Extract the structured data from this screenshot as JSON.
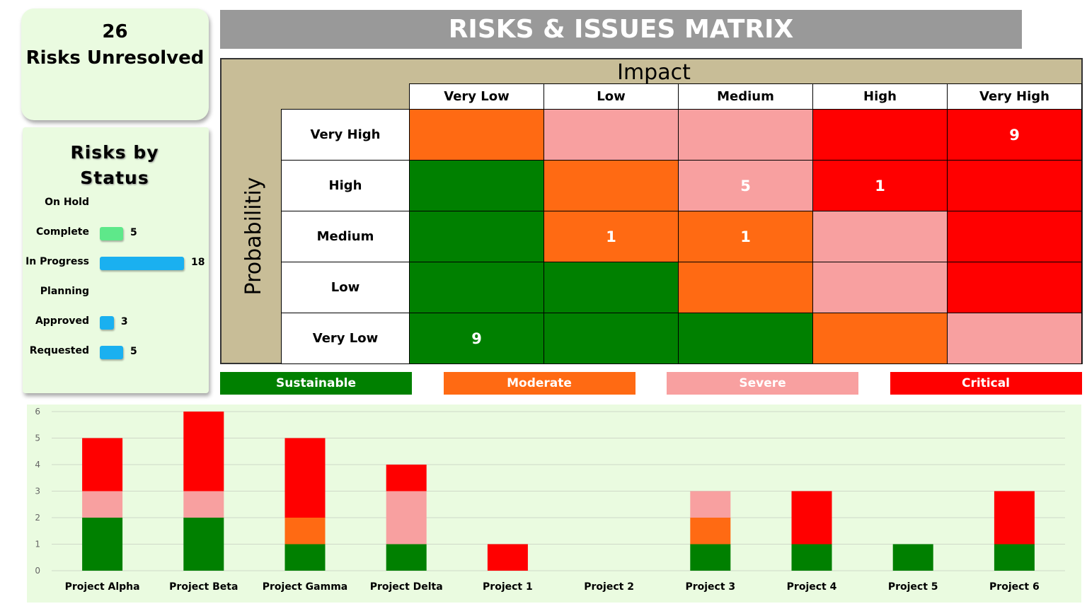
{
  "kpi": {
    "value": 26,
    "label": "Risks Unresolved"
  },
  "matrix": {
    "title": "RISKS & ISSUES MATRIX",
    "x_label": "Impact",
    "y_label": "Probabilitiy",
    "columns": [
      "Very Low",
      "Low",
      "Medium",
      "High",
      "Very High"
    ],
    "rows": [
      "Very High",
      "High",
      "Medium",
      "Low",
      "Very Low"
    ],
    "cell_colors": [
      [
        "#ff6a13",
        "#f8a0a0",
        "#f8a0a0",
        "#ff0000",
        "#ff0000"
      ],
      [
        "#008000",
        "#ff6a13",
        "#f8a0a0",
        "#ff0000",
        "#ff0000"
      ],
      [
        "#008000",
        "#ff6a13",
        "#ff6a13",
        "#f8a0a0",
        "#ff0000"
      ],
      [
        "#008000",
        "#008000",
        "#ff6a13",
        "#f8a0a0",
        "#ff0000"
      ],
      [
        "#008000",
        "#008000",
        "#008000",
        "#ff6a13",
        "#f8a0a0"
      ]
    ],
    "cell_values": [
      [
        null,
        null,
        null,
        null,
        9
      ],
      [
        null,
        null,
        5,
        1,
        null
      ],
      [
        null,
        1,
        1,
        null,
        null
      ],
      [
        null,
        null,
        null,
        null,
        null
      ],
      [
        9,
        null,
        null,
        null,
        null
      ]
    ],
    "legend": [
      {
        "name": "Sustainable",
        "color": "#008000"
      },
      {
        "name": "Moderate",
        "color": "#ff6a13"
      },
      {
        "name": "Severe",
        "color": "#f8a0a0"
      },
      {
        "name": "Critical",
        "color": "#ff0000"
      }
    ]
  },
  "chart_data": [
    {
      "type": "hbar",
      "title": "Risks by Status",
      "categories": [
        "On Hold",
        "Complete",
        "In Progress",
        "Planning",
        "Approved",
        "Requested"
      ],
      "values": [
        null,
        5,
        18,
        null,
        3,
        5
      ],
      "colors": [
        "#1ab0f0",
        "#5ee88a",
        "#1ab0f0",
        "#1ab0f0",
        "#1ab0f0",
        "#1ab0f0"
      ]
    },
    {
      "type": "stacked_bar",
      "categories": [
        "Project Alpha",
        "Project Beta",
        "Project Gamma",
        "Project Delta",
        "Project 1",
        "Project 2",
        "Project 3",
        "Project 4",
        "Project 5",
        "Project 6"
      ],
      "series": [
        {
          "color": "#008000",
          "values": [
            2,
            2,
            1,
            1,
            0,
            0,
            1,
            1,
            1,
            1
          ]
        },
        {
          "color": "#ff6a13",
          "values": [
            0,
            0,
            1,
            0,
            0,
            0,
            1,
            0,
            0,
            0
          ]
        },
        {
          "color": "#f8a0a0",
          "values": [
            1,
            1,
            0,
            2,
            0,
            0,
            1,
            0,
            0,
            0
          ]
        },
        {
          "color": "#ff0000",
          "values": [
            2,
            3,
            3,
            1,
            1,
            0,
            0,
            2,
            0,
            2
          ]
        }
      ],
      "ylim": [
        0,
        6
      ],
      "yticks": [
        0,
        1,
        2,
        3,
        4,
        5,
        6
      ],
      "grid": true
    }
  ]
}
